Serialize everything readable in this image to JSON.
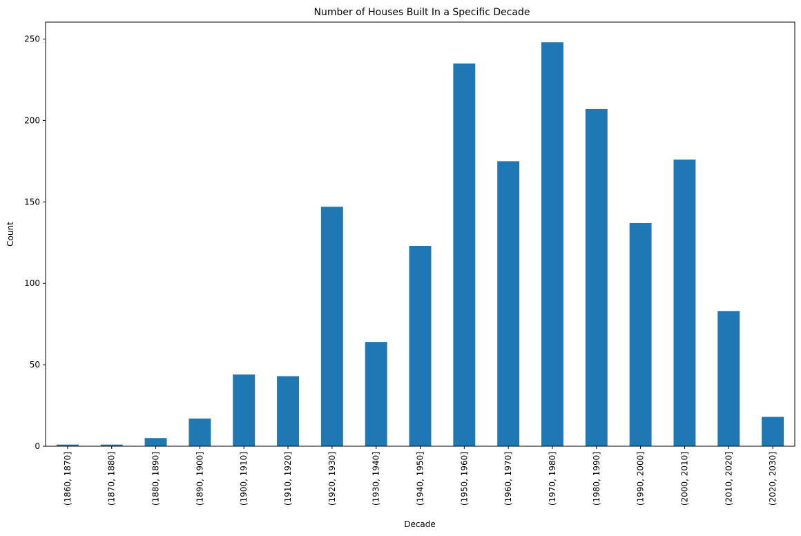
{
  "chart_data": {
    "type": "bar",
    "title": "Number of Houses Built In a Specific Decade",
    "xlabel": "Decade",
    "ylabel": "Count",
    "categories": [
      "(1860, 1870]",
      "(1870, 1880]",
      "(1880, 1890]",
      "(1890, 1900]",
      "(1900, 1910]",
      "(1910, 1920]",
      "(1920, 1930]",
      "(1930, 1940]",
      "(1940, 1950]",
      "(1950, 1960]",
      "(1960, 1970]",
      "(1970, 1980]",
      "(1980, 1990]",
      "(1990, 2000]",
      "(2000, 2010]",
      "(2010, 2020]",
      "(2020, 2030]"
    ],
    "values": [
      1,
      1,
      5,
      17,
      44,
      43,
      147,
      64,
      123,
      235,
      175,
      248,
      207,
      137,
      176,
      83,
      18
    ],
    "ylim": [
      0,
      260.4
    ],
    "yticks": [
      0,
      50,
      100,
      150,
      200,
      250
    ],
    "bar_color": "#1f77b4",
    "grid": false,
    "legend": "none"
  }
}
